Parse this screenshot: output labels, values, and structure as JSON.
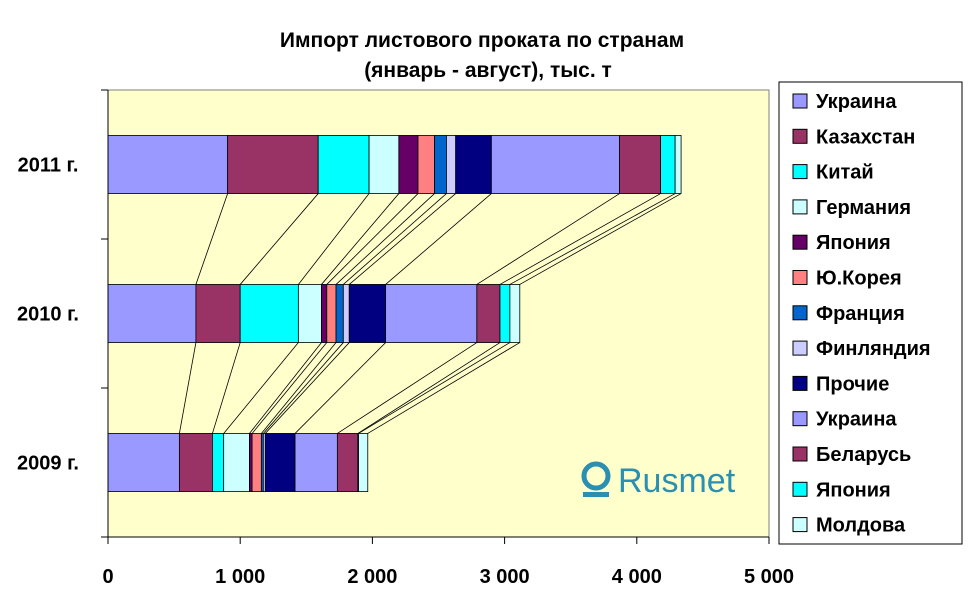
{
  "chart_data": {
    "type": "bar",
    "orientation": "horizontal",
    "stacked": true,
    "title": [
      "Импорт листового проката по странам",
      "(январь - август), тыс. т"
    ],
    "categories": [
      "2011 г.",
      "2010 г.",
      "2009 г."
    ],
    "xlim": [
      0,
      5000
    ],
    "xticks": [
      0,
      1000,
      2000,
      3000,
      4000,
      5000
    ],
    "xtick_labels": [
      "0",
      "1 000",
      "2 000",
      "3 000",
      "4 000",
      "5 000"
    ],
    "series_lines": true,
    "legend_position": "right",
    "series": [
      {
        "name": "Украина",
        "color": "#9999ff",
        "values": [
          905,
          665,
          540
        ]
      },
      {
        "name": "Казахстан",
        "color": "#993366",
        "values": [
          685,
          335,
          250
        ]
      },
      {
        "name": "Китай",
        "color": "#00ffff",
        "values": [
          385,
          440,
          85
        ]
      },
      {
        "name": "Германия",
        "color": "#ccffff",
        "values": [
          225,
          175,
          195
        ]
      },
      {
        "name": "Япония",
        "color": "#660066",
        "values": [
          145,
          40,
          20
        ]
      },
      {
        "name": "Ю.Корея",
        "color": "#ff8080",
        "values": [
          125,
          70,
          70
        ]
      },
      {
        "name": "Франция",
        "color": "#0066cc",
        "values": [
          90,
          55,
          15
        ]
      },
      {
        "name": "Финляндия",
        "color": "#ccccff",
        "values": [
          70,
          45,
          15
        ]
      },
      {
        "name": "Прочие",
        "color": "#000080",
        "values": [
          270,
          275,
          225
        ]
      },
      {
        "name": "Украина",
        "color": "#9999ff",
        "values": [
          970,
          690,
          320
        ]
      },
      {
        "name": "Беларусь",
        "color": "#993366",
        "values": [
          310,
          175,
          155
        ]
      },
      {
        "name": "Япония",
        "color": "#00ffff",
        "values": [
          110,
          75,
          5
        ]
      },
      {
        "name": "Молдова",
        "color": "#ccffff",
        "values": [
          45,
          75,
          70
        ]
      }
    ]
  },
  "logo": {
    "text": "Rusmet"
  }
}
